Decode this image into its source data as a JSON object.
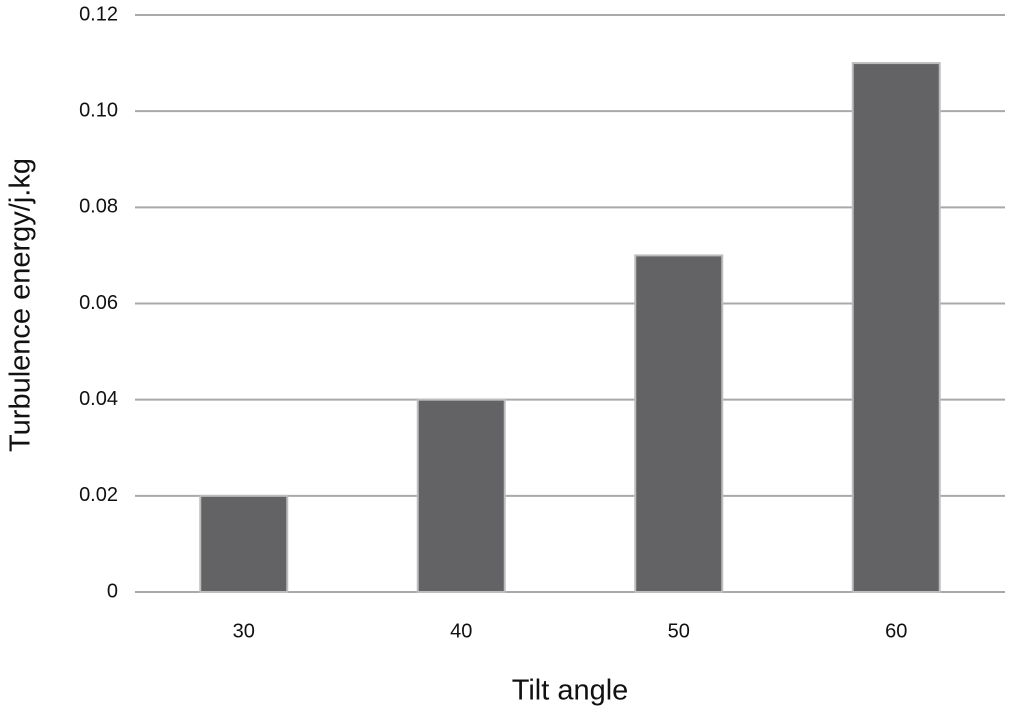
{
  "chart_data": {
    "type": "bar",
    "x_label": "Tilt angle",
    "y_label": "Turbulence energy/j.kg",
    "categories": [
      "30",
      "40",
      "50",
      "60"
    ],
    "values": [
      0.02,
      0.04,
      0.07,
      0.11
    ],
    "color": "#636366",
    "ylim": [
      0,
      0.12
    ],
    "yticks": [
      0,
      0.02,
      0.04,
      0.06,
      0.08,
      {
        "value": 0.1,
        "label": "0.10"
      },
      0.12
    ],
    "grid": true
  }
}
